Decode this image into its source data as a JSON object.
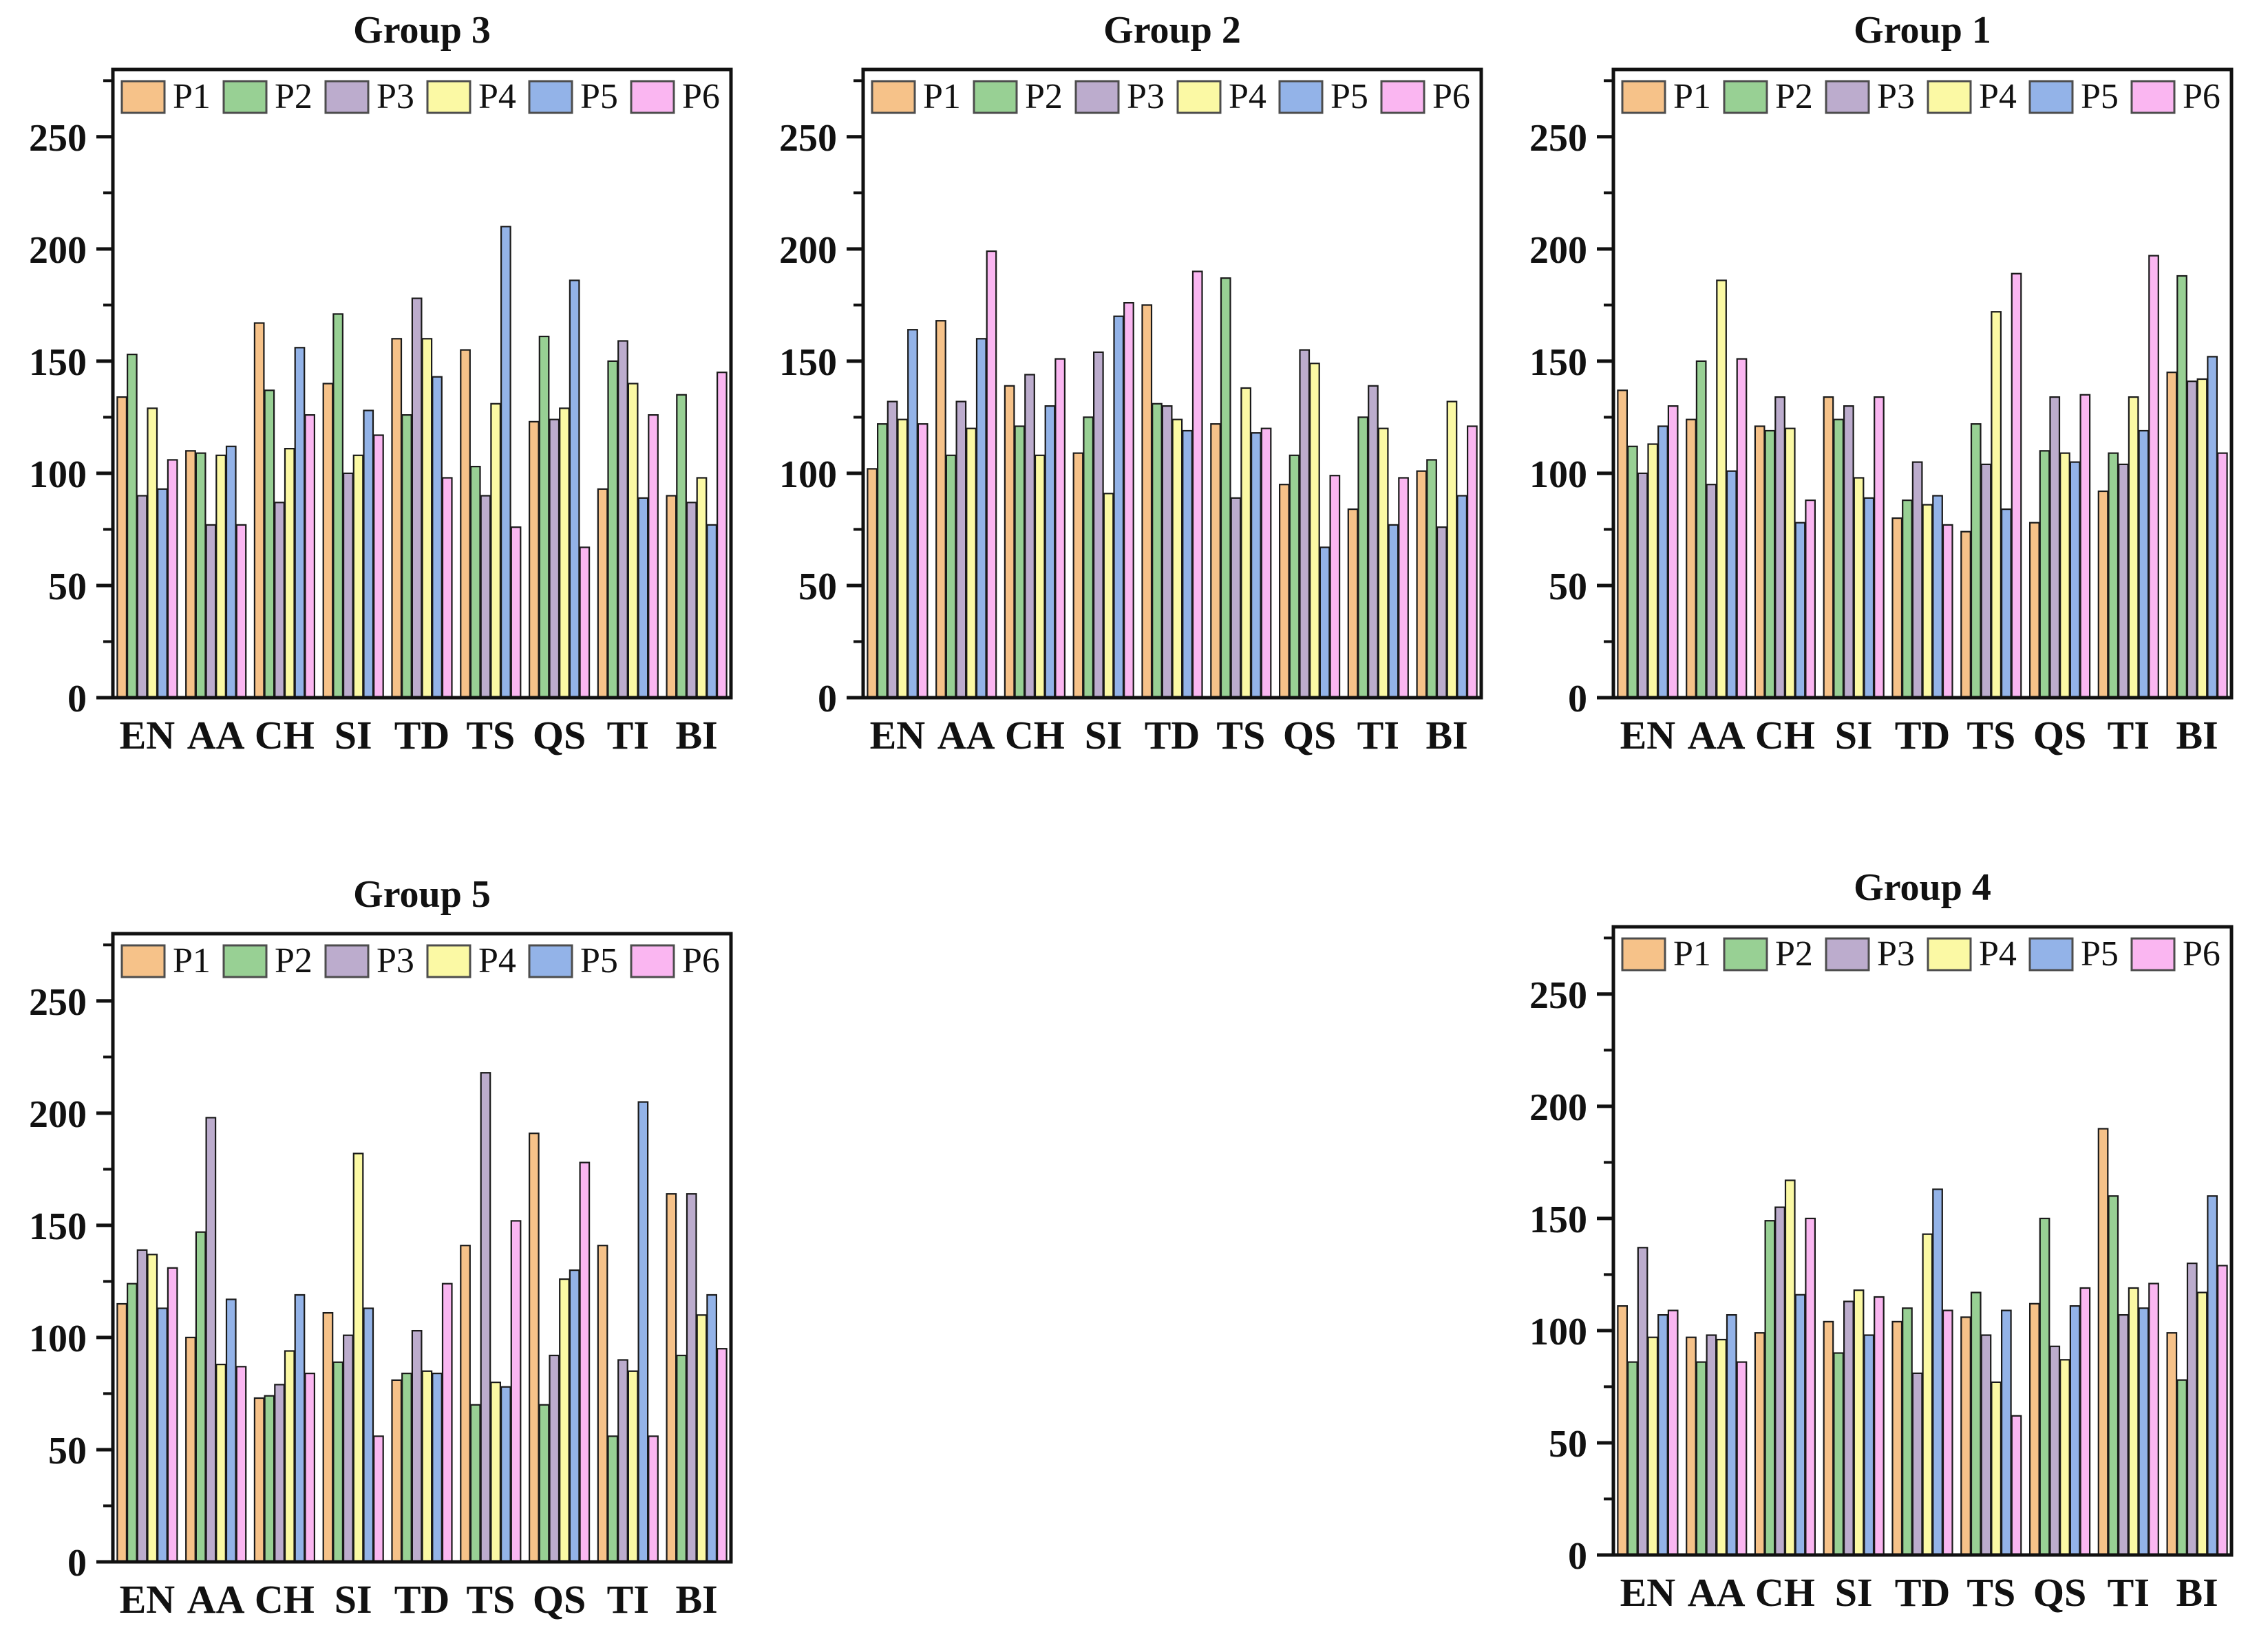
{
  "page": {
    "background": "#ffffff",
    "axis_color": "#111111",
    "bar_outline": "#1a1a1a",
    "legend_swatch_border": "#4d4d4d",
    "plot_background": "#ffffff"
  },
  "palette": {
    "P1": "#f6c289",
    "P2": "#98d094",
    "P3": "#bcaccd",
    "P4": "#fbf9a4",
    "P5": "#93b3e8",
    "P6": "#fab6f1"
  },
  "chart_data": [
    {
      "type": "bar",
      "title": "Group 3",
      "xlabel": "",
      "ylabel": "",
      "ylim": [
        0,
        280
      ],
      "yticks": [
        0,
        50,
        100,
        150,
        200,
        250
      ],
      "minor_tick_step": 25,
      "grid": false,
      "legend_position": "top-inside",
      "legend_labels": [
        "P1",
        "P2",
        "P3",
        "P4",
        "P5",
        "P6"
      ],
      "categories": [
        "EN",
        "AA",
        "CH",
        "SI",
        "TD",
        "TS",
        "QS",
        "TI",
        "BI"
      ],
      "series": [
        {
          "name": "P1",
          "values": [
            134,
            110,
            167,
            140,
            160,
            155,
            123,
            93,
            90
          ]
        },
        {
          "name": "P2",
          "values": [
            153,
            109,
            137,
            171,
            126,
            103,
            161,
            150,
            135
          ]
        },
        {
          "name": "P3",
          "values": [
            90,
            77,
            87,
            100,
            178,
            90,
            124,
            159,
            87
          ]
        },
        {
          "name": "P4",
          "values": [
            129,
            108,
            111,
            108,
            160,
            131,
            129,
            140,
            98
          ]
        },
        {
          "name": "P5",
          "values": [
            93,
            112,
            156,
            128,
            143,
            210,
            186,
            89,
            77
          ]
        },
        {
          "name": "P6",
          "values": [
            106,
            77,
            126,
            117,
            98,
            76,
            67,
            126,
            145
          ]
        }
      ]
    },
    {
      "type": "bar",
      "title": "Group 2",
      "xlabel": "",
      "ylabel": "",
      "ylim": [
        0,
        280
      ],
      "yticks": [
        0,
        50,
        100,
        150,
        200,
        250
      ],
      "minor_tick_step": 25,
      "grid": false,
      "legend_position": "top-inside",
      "legend_labels": [
        "P1",
        "P2",
        "P3",
        "P4",
        "P5",
        "P6"
      ],
      "categories": [
        "EN",
        "AA",
        "CH",
        "SI",
        "TD",
        "TS",
        "QS",
        "TI",
        "BI"
      ],
      "series": [
        {
          "name": "P1",
          "values": [
            102,
            168,
            139,
            109,
            175,
            122,
            95,
            84,
            101
          ]
        },
        {
          "name": "P2",
          "values": [
            122,
            108,
            121,
            125,
            131,
            187,
            108,
            125,
            106
          ]
        },
        {
          "name": "P3",
          "values": [
            132,
            132,
            144,
            154,
            130,
            89,
            155,
            139,
            76
          ]
        },
        {
          "name": "P4",
          "values": [
            124,
            120,
            108,
            91,
            124,
            138,
            149,
            120,
            132
          ]
        },
        {
          "name": "P5",
          "values": [
            164,
            160,
            130,
            170,
            119,
            118,
            67,
            77,
            90
          ]
        },
        {
          "name": "P6",
          "values": [
            122,
            199,
            151,
            176,
            190,
            120,
            99,
            98,
            121
          ]
        }
      ]
    },
    {
      "type": "bar",
      "title": "Group 1",
      "xlabel": "",
      "ylabel": "",
      "ylim": [
        0,
        280
      ],
      "yticks": [
        0,
        50,
        100,
        150,
        200,
        250
      ],
      "minor_tick_step": 25,
      "grid": false,
      "legend_position": "top-inside",
      "legend_labels": [
        "P1",
        "P2",
        "P3",
        "P4",
        "P5",
        "P6"
      ],
      "categories": [
        "EN",
        "AA",
        "CH",
        "SI",
        "TD",
        "TS",
        "QS",
        "TI",
        "BI"
      ],
      "series": [
        {
          "name": "P1",
          "values": [
            137,
            124,
            121,
            134,
            80,
            74,
            78,
            92,
            145
          ]
        },
        {
          "name": "P2",
          "values": [
            112,
            150,
            119,
            124,
            88,
            122,
            110,
            109,
            188
          ]
        },
        {
          "name": "P3",
          "values": [
            100,
            95,
            134,
            130,
            105,
            104,
            134,
            104,
            141
          ]
        },
        {
          "name": "P4",
          "values": [
            113,
            186,
            120,
            98,
            86,
            172,
            109,
            134,
            142
          ]
        },
        {
          "name": "P5",
          "values": [
            121,
            101,
            78,
            89,
            90,
            84,
            105,
            119,
            152
          ]
        },
        {
          "name": "P6",
          "values": [
            130,
            151,
            88,
            134,
            77,
            189,
            135,
            197,
            109
          ]
        }
      ]
    },
    {
      "type": "bar",
      "title": "Group 5",
      "xlabel": "",
      "ylabel": "",
      "ylim": [
        0,
        280
      ],
      "yticks": [
        0,
        50,
        100,
        150,
        200,
        250
      ],
      "minor_tick_step": 25,
      "grid": false,
      "legend_position": "top-inside",
      "legend_labels": [
        "P1",
        "P2",
        "P3",
        "P4",
        "P5",
        "P6"
      ],
      "categories": [
        "EN",
        "AA",
        "CH",
        "SI",
        "TD",
        "TS",
        "QS",
        "TI",
        "BI"
      ],
      "series": [
        {
          "name": "P1",
          "values": [
            115,
            100,
            73,
            111,
            81,
            141,
            191,
            141,
            164
          ]
        },
        {
          "name": "P2",
          "values": [
            124,
            147,
            74,
            89,
            84,
            70,
            70,
            56,
            92
          ]
        },
        {
          "name": "P3",
          "values": [
            139,
            198,
            79,
            101,
            103,
            218,
            92,
            90,
            164
          ]
        },
        {
          "name": "P4",
          "values": [
            137,
            88,
            94,
            182,
            85,
            80,
            126,
            85,
            110
          ]
        },
        {
          "name": "P5",
          "values": [
            113,
            117,
            119,
            113,
            84,
            78,
            130,
            205,
            119
          ]
        },
        {
          "name": "P6",
          "values": [
            131,
            87,
            84,
            56,
            124,
            152,
            178,
            56,
            95
          ]
        }
      ]
    },
    {
      "type": "bar",
      "title": "Group 4",
      "xlabel": "",
      "ylabel": "",
      "ylim": [
        0,
        280
      ],
      "yticks": [
        0,
        50,
        100,
        150,
        200,
        250
      ],
      "minor_tick_step": 25,
      "grid": false,
      "legend_position": "top-inside",
      "legend_labels": [
        "P1",
        "P2",
        "P3",
        "P4",
        "P5",
        "P6"
      ],
      "categories": [
        "EN",
        "AA",
        "CH",
        "SI",
        "TD",
        "TS",
        "QS",
        "TI",
        "BI"
      ],
      "series": [
        {
          "name": "P1",
          "values": [
            111,
            97,
            99,
            104,
            104,
            106,
            112,
            190,
            99
          ]
        },
        {
          "name": "P2",
          "values": [
            86,
            86,
            149,
            90,
            110,
            117,
            150,
            160,
            78
          ]
        },
        {
          "name": "P3",
          "values": [
            137,
            98,
            155,
            113,
            81,
            98,
            93,
            107,
            130
          ]
        },
        {
          "name": "P4",
          "values": [
            97,
            96,
            167,
            118,
            143,
            77,
            87,
            119,
            117
          ]
        },
        {
          "name": "P5",
          "values": [
            107,
            107,
            116,
            98,
            163,
            109,
            111,
            110,
            160
          ]
        },
        {
          "name": "P6",
          "values": [
            109,
            86,
            150,
            115,
            109,
            62,
            119,
            121,
            129
          ]
        }
      ]
    }
  ]
}
